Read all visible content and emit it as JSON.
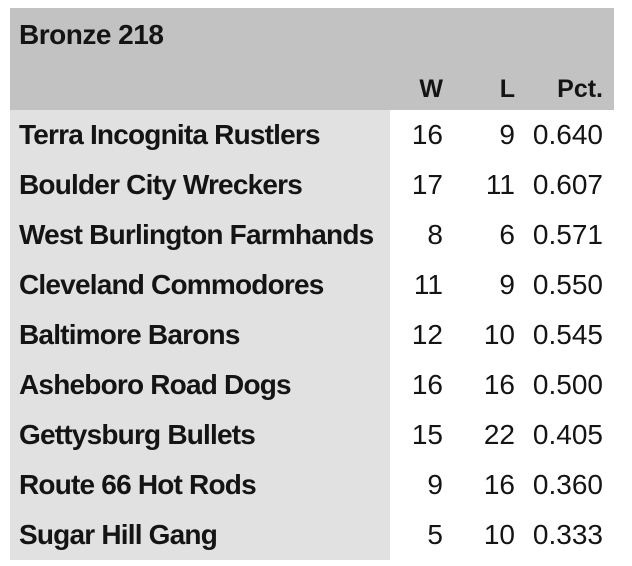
{
  "chart_data": {
    "type": "table",
    "title": "Bronze 218",
    "columns": [
      "W",
      "L",
      "Pct."
    ],
    "rows": [
      {
        "team": "Terra Incognita Rustlers",
        "w": "16",
        "l": "9",
        "pct": "0.640"
      },
      {
        "team": "Boulder City Wreckers",
        "w": "17",
        "l": "11",
        "pct": "0.607"
      },
      {
        "team": "West Burlington Farmhands",
        "w": "8",
        "l": "6",
        "pct": "0.571"
      },
      {
        "team": "Cleveland Commodores",
        "w": "11",
        "l": "9",
        "pct": "0.550"
      },
      {
        "team": "Baltimore Barons",
        "w": "12",
        "l": "10",
        "pct": "0.545"
      },
      {
        "team": "Asheboro Road Dogs",
        "w": "16",
        "l": "16",
        "pct": "0.500"
      },
      {
        "team": "Gettysburg Bullets",
        "w": "15",
        "l": "22",
        "pct": "0.405"
      },
      {
        "team": "Route 66 Hot Rods",
        "w": "9",
        "l": "16",
        "pct": "0.360"
      },
      {
        "team": "Sugar Hill Gang",
        "w": "5",
        "l": "10",
        "pct": "0.333"
      }
    ]
  },
  "colors": {
    "header_bg": "#c2c2c2",
    "team_cell_bg": "#e1e1e1",
    "text": "#141414",
    "page_bg": "#ffffff"
  }
}
